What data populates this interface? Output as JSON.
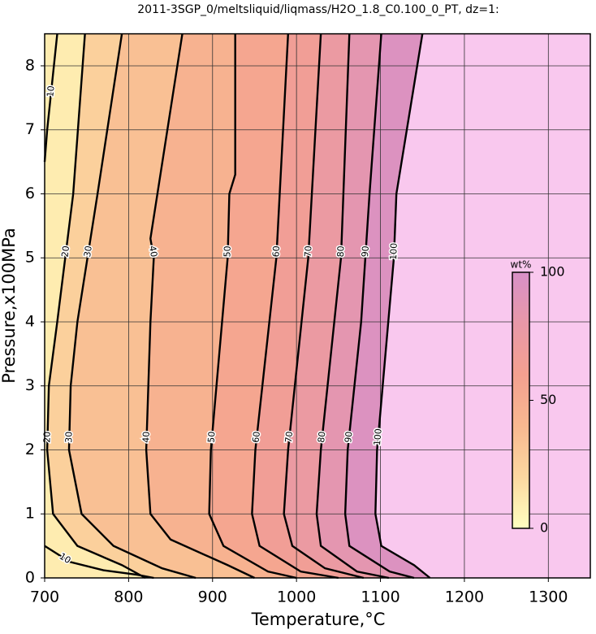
{
  "chart_data": {
    "type": "contour",
    "title": "2011-3SGP_0/meltsliquid/liqmass/H2O_1.8_C0.100_0_PT, dz=1:",
    "x_label": "Temperature,°C",
    "y_label": "Pressure,x100MPa",
    "xlim": [
      700,
      1350
    ],
    "ylim": [
      0,
      8.5
    ],
    "xticks": [
      700,
      800,
      900,
      1000,
      1100,
      1200,
      1300
    ],
    "yticks": [
      0,
      1,
      2,
      3,
      4,
      5,
      6,
      7,
      8
    ],
    "grid": true,
    "colorbar": {
      "label": "wt%",
      "lim": [
        0,
        100
      ],
      "ticks": [
        0,
        50,
        100
      ],
      "colors": [
        "#ffffc0",
        "#fcd8a0",
        "#f8b890",
        "#f4a090",
        "#e898a8",
        "#d890c8",
        "#f9c8ee"
      ]
    },
    "series": [
      {
        "level": 10,
        "color": "#000",
        "x": [
          715,
          703,
          700,
          null,
          700,
          730,
          770,
          810,
          830
        ],
        "y": [
          8.5,
          7.0,
          6.5,
          null,
          0.5,
          0.25,
          0.12,
          0.05,
          0
        ]
      },
      {
        "level": 20,
        "color": "#000",
        "x": [
          748,
          734,
          715,
          705,
          703,
          710,
          739,
          792,
          820
        ],
        "y": [
          8.5,
          6,
          4,
          3,
          2,
          1,
          0.5,
          0.2,
          0
        ]
      },
      {
        "level": 30,
        "color": "#000",
        "x": [
          792,
          763,
          739,
          731,
          729,
          744,
          782,
          840,
          880
        ],
        "y": [
          8.5,
          6,
          4,
          3,
          2,
          1,
          0.5,
          0.15,
          0
        ]
      },
      {
        "level": 40,
        "color": "#000",
        "x": [
          864,
          826,
          830,
          826,
          821,
          826,
          850,
          918,
          950
        ],
        "y": [
          8.5,
          5.3,
          5,
          4,
          2,
          1,
          0.6,
          0.2,
          0
        ]
      },
      {
        "level": 50,
        "color": "#000",
        "x": [
          927,
          927,
          920,
          918,
          898,
          896,
          913,
          966,
          1000
        ],
        "y": [
          8.5,
          6.3,
          6,
          5,
          2,
          1,
          0.5,
          0.1,
          0
        ]
      },
      {
        "level": 60,
        "color": "#000",
        "x": [
          990,
          976,
          951,
          947,
          956,
          1005,
          1050
        ],
        "y": [
          8.5,
          5,
          2,
          1,
          0.5,
          0.1,
          0
        ]
      },
      {
        "level": 70,
        "color": "#000",
        "x": [
          1029,
          1014,
          990,
          985,
          995,
          1034,
          1080
        ],
        "y": [
          8.5,
          5,
          2,
          1,
          0.5,
          0.15,
          0
        ]
      },
      {
        "level": 80,
        "color": "#000",
        "x": [
          1063,
          1053,
          1029,
          1024,
          1029,
          1072,
          1110
        ],
        "y": [
          8.5,
          5,
          2,
          1,
          0.5,
          0.1,
          0
        ]
      },
      {
        "level": 90,
        "color": "#000",
        "x": [
          1101,
          1087,
          1077,
          1061,
          1058,
          1063,
          1111,
          1140
        ],
        "y": [
          8.5,
          6,
          4,
          2,
          1,
          0.5,
          0.1,
          0
        ]
      },
      {
        "level": 100,
        "color": "#000",
        "x": [
          1150,
          1119,
          1116,
          1096,
          1094,
          1101,
          1140,
          1159
        ],
        "y": [
          8.5,
          6,
          5,
          2,
          1,
          0.5,
          0.2,
          0
        ]
      }
    ]
  }
}
